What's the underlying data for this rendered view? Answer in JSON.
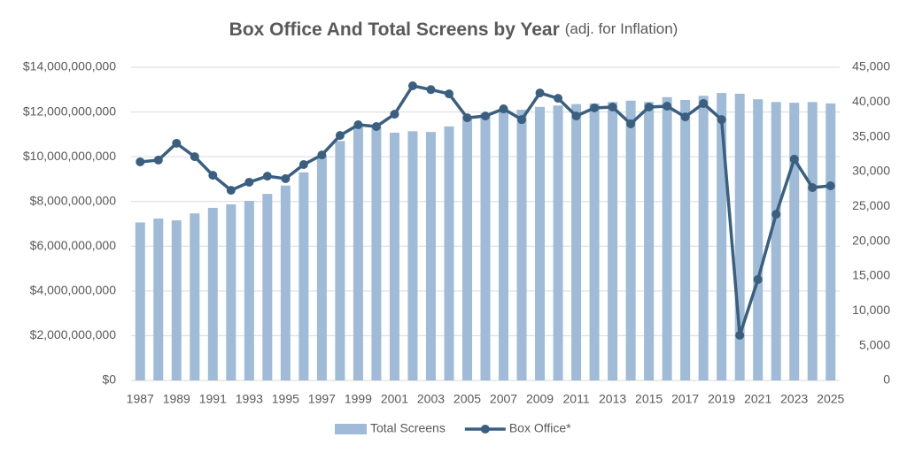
{
  "chart_data": {
    "type": "combo",
    "title": "Box Office And Total Screens by Year",
    "subtitle": "(adj. for Inflation)",
    "categories": [
      "1987",
      null,
      "1989",
      null,
      "1991",
      null,
      "1993",
      null,
      "1995",
      null,
      "1997",
      null,
      "1999",
      null,
      "2001",
      null,
      "2003",
      null,
      "2005",
      null,
      "2007",
      null,
      "2009",
      null,
      "2011",
      null,
      "2013",
      null,
      "2015",
      null,
      "2017",
      null,
      "2019",
      null,
      "2021",
      null,
      "2023",
      null,
      "2025"
    ],
    "series": [
      {
        "name": "Total Screens",
        "type": "bar",
        "axis": "y2",
        "color": "#9fbbd7",
        "values": [
          22700,
          23260,
          23000,
          24000,
          24800,
          25300,
          25800,
          26800,
          28000,
          29900,
          32300,
          34400,
          36400,
          36500,
          35600,
          35800,
          35700,
          36500,
          38000,
          38400,
          38800,
          38900,
          39300,
          39500,
          39700,
          39800,
          40000,
          40200,
          40000,
          40700,
          40300,
          40900,
          41300,
          41200,
          40400,
          40000,
          39900,
          40000,
          39800
        ]
      },
      {
        "name": "Box Office*",
        "type": "line",
        "color": "#3a5f80",
        "values": [
          9770000000,
          9850000000,
          10600000000,
          10000000000,
          9170000000,
          8500000000,
          8860000000,
          9130000000,
          9020000000,
          9650000000,
          10080000000,
          10950000000,
          11430000000,
          11350000000,
          11900000000,
          13170000000,
          13000000000,
          12810000000,
          11740000000,
          11820000000,
          12140000000,
          11660000000,
          12850000000,
          12610000000,
          11820000000,
          12180000000,
          12220000000,
          11470000000,
          12220000000,
          12260000000,
          11780000000,
          12380000000,
          11660000000,
          2020000000,
          4510000000,
          7430000000,
          9890000000,
          8620000000,
          8700000000
        ]
      }
    ],
    "ylim": [
      0,
      14000000000
    ],
    "yticks": [
      {
        "value": 0,
        "label": "$0"
      },
      {
        "value": 2000000000,
        "label": "$2,000,000,000"
      },
      {
        "value": 4000000000,
        "label": "$4,000,000,000"
      },
      {
        "value": 6000000000,
        "label": "$6,000,000,000"
      },
      {
        "value": 8000000000,
        "label": "$8,000,000,000"
      },
      {
        "value": 10000000000,
        "label": "$10,000,000,000"
      },
      {
        "value": 12000000000,
        "label": "$12,000,000,000"
      },
      {
        "value": 14000000000,
        "label": "$14,000,000,000"
      }
    ],
    "y2lim": [
      0,
      45000
    ],
    "y2ticks": [
      0,
      {
        "value": 5000,
        "label": "5,000"
      },
      {
        "value": 10000,
        "label": "10,000"
      },
      {
        "value": 15000,
        "label": "15,000"
      },
      {
        "value": 20000,
        "label": "20,000"
      },
      {
        "value": 25000,
        "label": "25,000"
      },
      {
        "value": 30000,
        "label": "30,000"
      },
      {
        "value": 35000,
        "label": "35,000"
      },
      {
        "value": 40000,
        "label": "40,000"
      },
      {
        "value": 45000,
        "label": "45,000"
      }
    ],
    "grid": true,
    "legend": "bottom"
  }
}
